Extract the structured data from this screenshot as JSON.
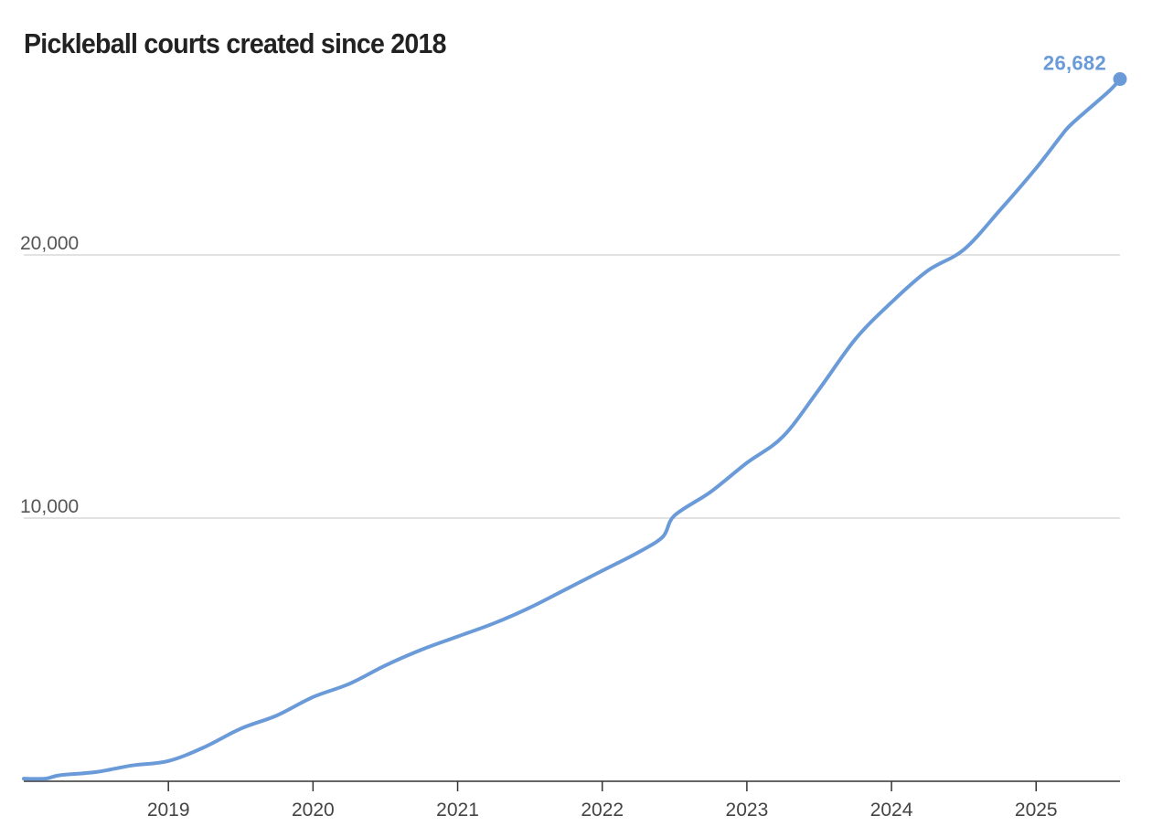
{
  "chart_data": {
    "type": "line",
    "title": "Pickleball courts created since 2018",
    "xlabel": "",
    "ylabel": "",
    "xlim": [
      2018.0,
      2025.58
    ],
    "ylim": [
      0,
      26682
    ],
    "grid": true,
    "yticks": [
      {
        "value": 10000,
        "label": "10,000"
      },
      {
        "value": 20000,
        "label": "20,000"
      }
    ],
    "xticks": [
      {
        "value": 2019,
        "label": "2019"
      },
      {
        "value": 2020,
        "label": "2020"
      },
      {
        "value": 2021,
        "label": "2021"
      },
      {
        "value": 2022,
        "label": "2022"
      },
      {
        "value": 2023,
        "label": "2023"
      },
      {
        "value": 2024,
        "label": "2024"
      },
      {
        "value": 2025,
        "label": "2025"
      }
    ],
    "line_color": "#6a9bd8",
    "series": [
      {
        "name": "Pickleball courts created",
        "x": [
          2018.0,
          2018.15,
          2018.25,
          2018.5,
          2018.75,
          2019.0,
          2019.25,
          2019.5,
          2019.75,
          2020.0,
          2020.25,
          2020.5,
          2020.75,
          2021.0,
          2021.25,
          2021.5,
          2021.75,
          2022.0,
          2022.25,
          2022.42,
          2022.5,
          2022.75,
          2023.0,
          2023.25,
          2023.5,
          2023.75,
          2024.0,
          2024.25,
          2024.5,
          2024.75,
          2025.0,
          2025.17,
          2025.25,
          2025.5,
          2025.58
        ],
        "values": [
          100,
          100,
          230,
          350,
          600,
          770,
          1300,
          2000,
          2500,
          3200,
          3700,
          4400,
          5000,
          5500,
          6000,
          6600,
          7300,
          8000,
          8700,
          9300,
          10100,
          11000,
          12100,
          13100,
          14900,
          16800,
          18200,
          19400,
          20200,
          21700,
          23300,
          24500,
          25000,
          26200,
          26682
        ]
      }
    ],
    "end_value": 26682,
    "end_label": "26,682"
  }
}
